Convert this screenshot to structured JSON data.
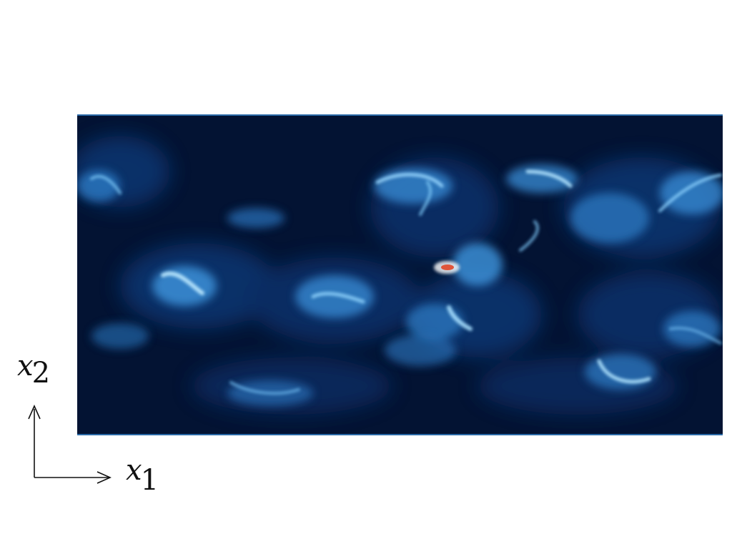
{
  "figure": {
    "colormap": {
      "low": "#020a22",
      "mid": "#0e3a78",
      "high": "#8fdcff",
      "peak": "#e0553a"
    },
    "axes": {
      "x1": {
        "symbol": "x",
        "subscript": "1"
      },
      "x2": {
        "symbol": "x",
        "subscript": "2"
      }
    }
  }
}
